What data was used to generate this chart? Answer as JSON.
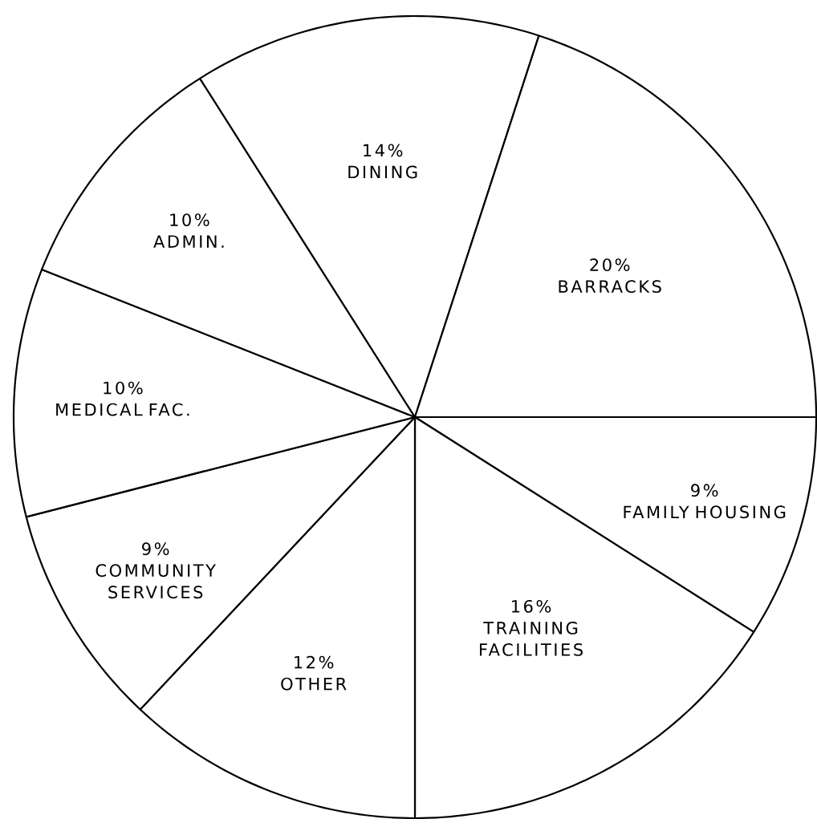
{
  "chart_data": {
    "type": "pie",
    "categories": [
      "FAMILY HOUSING",
      "TRAINING FACILITIES",
      "OTHER",
      "COMMUNITY SERVICES",
      "MEDICAL FAC.",
      "ADMIN.",
      "DINING",
      "BARRACKS"
    ],
    "values": [
      9,
      16,
      12,
      9,
      10,
      10,
      14,
      20
    ],
    "value_labels": [
      "9%",
      "16%",
      "12%",
      "9%",
      "10%",
      "10%",
      "14%",
      "20%"
    ],
    "colors": [
      "#ffffff",
      "#ffffff",
      "#ffffff",
      "#ffffff",
      "#ffffff",
      "#ffffff",
      "#ffffff",
      "#ffffff"
    ]
  }
}
